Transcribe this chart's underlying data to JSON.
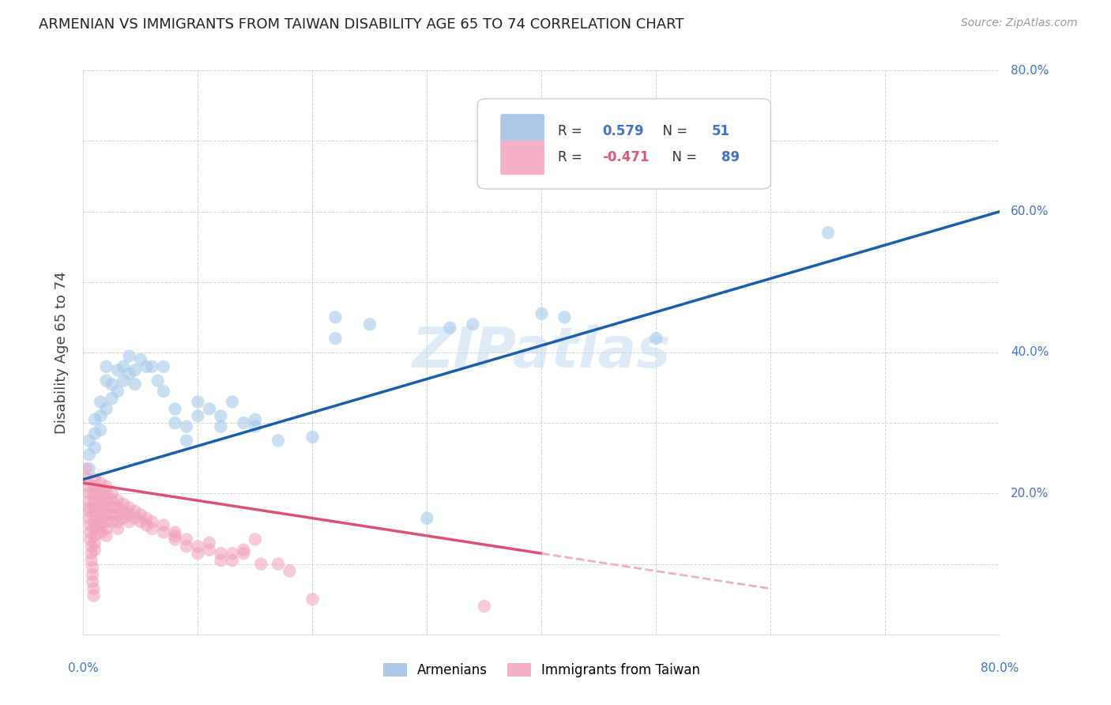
{
  "title": "ARMENIAN VS IMMIGRANTS FROM TAIWAN DISABILITY AGE 65 TO 74 CORRELATION CHART",
  "source": "Source: ZipAtlas.com",
  "ylabel": "Disability Age 65 to 74",
  "xlim": [
    0.0,
    0.8
  ],
  "ylim": [
    0.0,
    0.8
  ],
  "xticks": [
    0.0,
    0.1,
    0.2,
    0.3,
    0.4,
    0.5,
    0.6,
    0.7,
    0.8
  ],
  "yticks": [
    0.0,
    0.1,
    0.2,
    0.3,
    0.4,
    0.5,
    0.6,
    0.7,
    0.8
  ],
  "blue_color": "#a8c8e8",
  "pink_color": "#f0a0b8",
  "blue_line_color": "#1a5fa8",
  "pink_line_color": "#e05070",
  "pink_line_dash_color": "#f0b0c0",
  "watermark": "ZIPatlas",
  "background_color": "#ffffff",
  "grid_color": "#c8c8c8",
  "armenian_points": [
    [
      0.005,
      0.235
    ],
    [
      0.005,
      0.255
    ],
    [
      0.005,
      0.275
    ],
    [
      0.01,
      0.305
    ],
    [
      0.01,
      0.285
    ],
    [
      0.01,
      0.265
    ],
    [
      0.015,
      0.31
    ],
    [
      0.015,
      0.33
    ],
    [
      0.015,
      0.29
    ],
    [
      0.02,
      0.36
    ],
    [
      0.02,
      0.38
    ],
    [
      0.02,
      0.32
    ],
    [
      0.025,
      0.355
    ],
    [
      0.025,
      0.335
    ],
    [
      0.03,
      0.375
    ],
    [
      0.03,
      0.345
    ],
    [
      0.035,
      0.36
    ],
    [
      0.035,
      0.38
    ],
    [
      0.04,
      0.395
    ],
    [
      0.04,
      0.37
    ],
    [
      0.045,
      0.355
    ],
    [
      0.045,
      0.375
    ],
    [
      0.05,
      0.39
    ],
    [
      0.055,
      0.38
    ],
    [
      0.06,
      0.38
    ],
    [
      0.065,
      0.36
    ],
    [
      0.07,
      0.345
    ],
    [
      0.07,
      0.38
    ],
    [
      0.08,
      0.3
    ],
    [
      0.08,
      0.32
    ],
    [
      0.09,
      0.275
    ],
    [
      0.09,
      0.295
    ],
    [
      0.1,
      0.31
    ],
    [
      0.1,
      0.33
    ],
    [
      0.11,
      0.32
    ],
    [
      0.12,
      0.295
    ],
    [
      0.12,
      0.31
    ],
    [
      0.13,
      0.33
    ],
    [
      0.14,
      0.3
    ],
    [
      0.15,
      0.295
    ],
    [
      0.15,
      0.305
    ],
    [
      0.17,
      0.275
    ],
    [
      0.2,
      0.28
    ],
    [
      0.22,
      0.45
    ],
    [
      0.22,
      0.42
    ],
    [
      0.25,
      0.44
    ],
    [
      0.3,
      0.165
    ],
    [
      0.32,
      0.435
    ],
    [
      0.34,
      0.44
    ],
    [
      0.4,
      0.455
    ],
    [
      0.42,
      0.45
    ],
    [
      0.5,
      0.42
    ],
    [
      0.65,
      0.57
    ]
  ],
  "taiwan_points": [
    [
      0.002,
      0.235
    ],
    [
      0.003,
      0.22
    ],
    [
      0.004,
      0.21
    ],
    [
      0.005,
      0.2
    ],
    [
      0.005,
      0.19
    ],
    [
      0.005,
      0.18
    ],
    [
      0.005,
      0.175
    ],
    [
      0.005,
      0.165
    ],
    [
      0.006,
      0.155
    ],
    [
      0.006,
      0.145
    ],
    [
      0.006,
      0.135
    ],
    [
      0.007,
      0.125
    ],
    [
      0.007,
      0.115
    ],
    [
      0.007,
      0.105
    ],
    [
      0.008,
      0.095
    ],
    [
      0.008,
      0.085
    ],
    [
      0.008,
      0.075
    ],
    [
      0.009,
      0.065
    ],
    [
      0.009,
      0.055
    ],
    [
      0.01,
      0.22
    ],
    [
      0.01,
      0.21
    ],
    [
      0.01,
      0.2
    ],
    [
      0.01,
      0.19
    ],
    [
      0.01,
      0.18
    ],
    [
      0.01,
      0.17
    ],
    [
      0.01,
      0.16
    ],
    [
      0.01,
      0.15
    ],
    [
      0.01,
      0.14
    ],
    [
      0.01,
      0.13
    ],
    [
      0.01,
      0.12
    ],
    [
      0.015,
      0.215
    ],
    [
      0.015,
      0.205
    ],
    [
      0.015,
      0.195
    ],
    [
      0.015,
      0.185
    ],
    [
      0.015,
      0.175
    ],
    [
      0.015,
      0.165
    ],
    [
      0.015,
      0.155
    ],
    [
      0.015,
      0.145
    ],
    [
      0.02,
      0.21
    ],
    [
      0.02,
      0.2
    ],
    [
      0.02,
      0.19
    ],
    [
      0.02,
      0.18
    ],
    [
      0.02,
      0.17
    ],
    [
      0.02,
      0.16
    ],
    [
      0.02,
      0.15
    ],
    [
      0.02,
      0.14
    ],
    [
      0.025,
      0.2
    ],
    [
      0.025,
      0.19
    ],
    [
      0.025,
      0.18
    ],
    [
      0.025,
      0.17
    ],
    [
      0.025,
      0.16
    ],
    [
      0.03,
      0.19
    ],
    [
      0.03,
      0.18
    ],
    [
      0.03,
      0.17
    ],
    [
      0.03,
      0.16
    ],
    [
      0.03,
      0.15
    ],
    [
      0.035,
      0.185
    ],
    [
      0.035,
      0.175
    ],
    [
      0.035,
      0.165
    ],
    [
      0.04,
      0.18
    ],
    [
      0.04,
      0.17
    ],
    [
      0.04,
      0.16
    ],
    [
      0.045,
      0.175
    ],
    [
      0.045,
      0.165
    ],
    [
      0.05,
      0.17
    ],
    [
      0.05,
      0.16
    ],
    [
      0.055,
      0.165
    ],
    [
      0.055,
      0.155
    ],
    [
      0.06,
      0.16
    ],
    [
      0.06,
      0.15
    ],
    [
      0.07,
      0.155
    ],
    [
      0.07,
      0.145
    ],
    [
      0.08,
      0.14
    ],
    [
      0.08,
      0.135
    ],
    [
      0.08,
      0.145
    ],
    [
      0.09,
      0.135
    ],
    [
      0.09,
      0.125
    ],
    [
      0.1,
      0.125
    ],
    [
      0.1,
      0.115
    ],
    [
      0.11,
      0.13
    ],
    [
      0.11,
      0.12
    ],
    [
      0.12,
      0.115
    ],
    [
      0.12,
      0.105
    ],
    [
      0.13,
      0.115
    ],
    [
      0.13,
      0.105
    ],
    [
      0.14,
      0.12
    ],
    [
      0.14,
      0.115
    ],
    [
      0.15,
      0.135
    ],
    [
      0.155,
      0.1
    ],
    [
      0.17,
      0.1
    ],
    [
      0.18,
      0.09
    ],
    [
      0.2,
      0.05
    ],
    [
      0.35,
      0.04
    ]
  ],
  "blue_line_x0": 0.0,
  "blue_line_y0": 0.22,
  "blue_line_x1": 0.8,
  "blue_line_y1": 0.6,
  "pink_line_x0": 0.0,
  "pink_line_y0": 0.215,
  "pink_line_x1": 0.4,
  "pink_line_y1": 0.115
}
